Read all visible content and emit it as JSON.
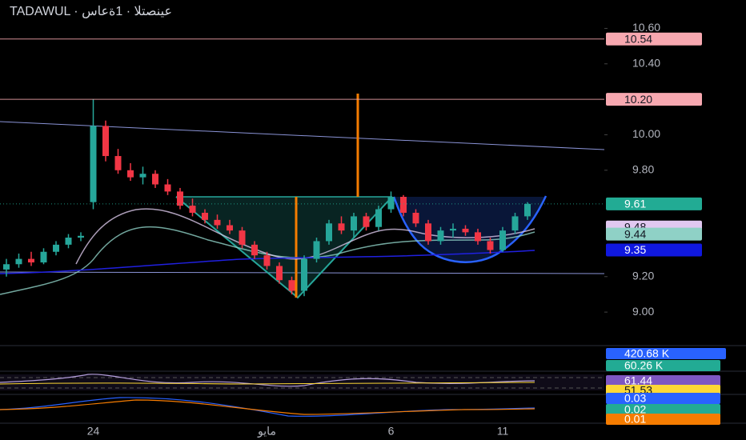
{
  "chart_data": {
    "type": "candlestick",
    "title": "TADAWUL · عينصتلا · 1ةعاس",
    "categories": [
      null,
      null,
      null,
      null,
      null,
      null,
      null,
      "24",
      null,
      null,
      null,
      null,
      null,
      null,
      null,
      null,
      null,
      null,
      null,
      null,
      null,
      "مايو",
      null,
      null,
      null,
      null,
      null,
      null,
      null,
      null,
      null,
      "6",
      null,
      null,
      null,
      null,
      null,
      null,
      null,
      null,
      "11",
      null,
      null
    ],
    "open": [
      9.24,
      9.27,
      9.3,
      9.28,
      9.34,
      9.38,
      9.42,
      9.62,
      10.05,
      9.88,
      9.8,
      9.76,
      9.78,
      9.72,
      9.68,
      9.6,
      9.56,
      9.52,
      9.49,
      9.46,
      9.38,
      9.32,
      9.26,
      9.18,
      9.12,
      9.3,
      9.4,
      9.5,
      9.46,
      9.54,
      9.48,
      9.58,
      9.65,
      9.56,
      9.5,
      9.4,
      9.46,
      9.47,
      9.45,
      9.4,
      9.35,
      9.46,
      9.54
    ],
    "high": [
      9.3,
      9.33,
      9.34,
      9.36,
      9.4,
      9.44,
      9.45,
      10.2,
      10.08,
      9.92,
      9.84,
      9.82,
      9.8,
      9.75,
      9.7,
      9.64,
      9.58,
      9.55,
      9.52,
      9.48,
      9.4,
      9.34,
      9.28,
      9.2,
      9.32,
      9.42,
      9.52,
      9.54,
      9.56,
      9.56,
      9.6,
      9.68,
      9.66,
      9.58,
      9.52,
      9.48,
      9.5,
      9.49,
      9.47,
      9.42,
      9.48,
      9.56,
      9.62
    ],
    "low": [
      9.2,
      9.25,
      9.26,
      9.27,
      9.32,
      9.36,
      9.4,
      9.58,
      9.85,
      9.78,
      9.74,
      9.72,
      9.7,
      9.66,
      9.58,
      9.54,
      9.5,
      9.47,
      9.44,
      9.36,
      9.3,
      9.24,
      9.16,
      9.1,
      9.09,
      9.28,
      9.38,
      9.44,
      9.42,
      9.46,
      9.46,
      9.56,
      9.54,
      9.48,
      9.38,
      9.38,
      9.42,
      9.43,
      9.38,
      9.33,
      9.34,
      9.44,
      9.52
    ],
    "close": [
      9.27,
      9.3,
      9.28,
      9.34,
      9.38,
      9.42,
      9.43,
      10.05,
      9.88,
      9.8,
      9.76,
      9.78,
      9.72,
      9.68,
      9.6,
      9.56,
      9.52,
      9.49,
      9.46,
      9.38,
      9.32,
      9.26,
      9.18,
      9.12,
      9.3,
      9.4,
      9.5,
      9.46,
      9.54,
      9.48,
      9.58,
      9.65,
      9.56,
      9.5,
      9.4,
      9.46,
      9.47,
      9.45,
      9.4,
      9.35,
      9.46,
      9.54,
      9.61
    ],
    "up_color": "#26a69a",
    "down_color": "#f23645",
    "ylim": [
      8.82,
      10.76
    ],
    "yticks": [
      {
        "value": 9.0,
        "label": "9.00"
      },
      {
        "value": 9.2,
        "label": "9.20"
      },
      {
        "value": 9.8,
        "label": "9.80"
      },
      {
        "value": 10.0,
        "label": "10.00"
      },
      {
        "value": 10.4,
        "label": "10.40"
      },
      {
        "value": 10.6,
        "label": "10.60"
      }
    ],
    "price_badges": [
      {
        "value": 10.54,
        "color": "#f7a8b0",
        "line": "solid"
      },
      {
        "value": 10.2,
        "label": "10.20",
        "color": "#f7a8b0",
        "line": "solid"
      },
      {
        "value": 9.61,
        "color": "#22ab94",
        "line": "dotted"
      },
      {
        "value": 9.48,
        "color": "#e1c8f0"
      },
      {
        "value": 9.44,
        "color": "#8fd1c6"
      },
      {
        "value": 9.35,
        "color": "#1018e0"
      }
    ],
    "indicator_badges": [
      {
        "label": "420.68 K",
        "color": "#2962ff"
      },
      {
        "label": "60.26 K",
        "color": "#22ab94"
      },
      {
        "label": "61.44",
        "color": "#7e57c2"
      },
      {
        "label": "51.53",
        "color": "#fdd835"
      },
      {
        "label": "0.03",
        "color": "#2962ff"
      },
      {
        "label": "0.02",
        "color": "#22ab94"
      },
      {
        "label": "0.01",
        "color": "#f57c00"
      }
    ]
  }
}
